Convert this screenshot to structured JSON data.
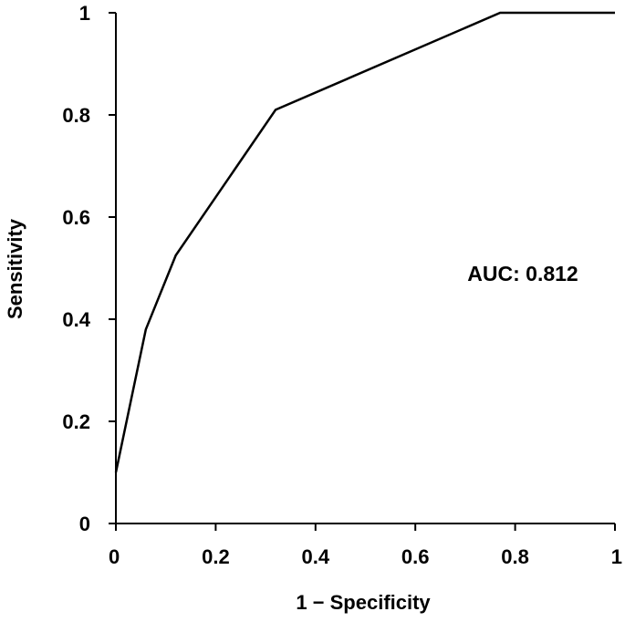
{
  "chart_data": {
    "type": "line",
    "title": "",
    "xlabel": "1 − Specificity",
    "ylabel": "Sensitivity",
    "xlim": [
      0,
      1
    ],
    "ylim": [
      0,
      1
    ],
    "x_ticks": [
      0,
      0.2,
      0.4,
      0.6,
      0.8,
      1
    ],
    "y_ticks": [
      0,
      0.2,
      0.4,
      0.6,
      0.8,
      1
    ],
    "x_tick_labels": [
      "0",
      "0.2",
      "0.4",
      "0.6",
      "0.8",
      "1"
    ],
    "y_tick_labels": [
      "0",
      "0.2",
      "0.4",
      "0.6",
      "0.8",
      "1"
    ],
    "grid": false,
    "legend": "none",
    "annotation": "AUC: 0.812",
    "series": [
      {
        "x": [
          0,
          0.06,
          0.12,
          0.32,
          0.77,
          1
        ],
        "y": [
          0.1,
          0.38,
          0.525,
          0.81,
          1,
          1
        ],
        "color": "#000000"
      }
    ]
  }
}
